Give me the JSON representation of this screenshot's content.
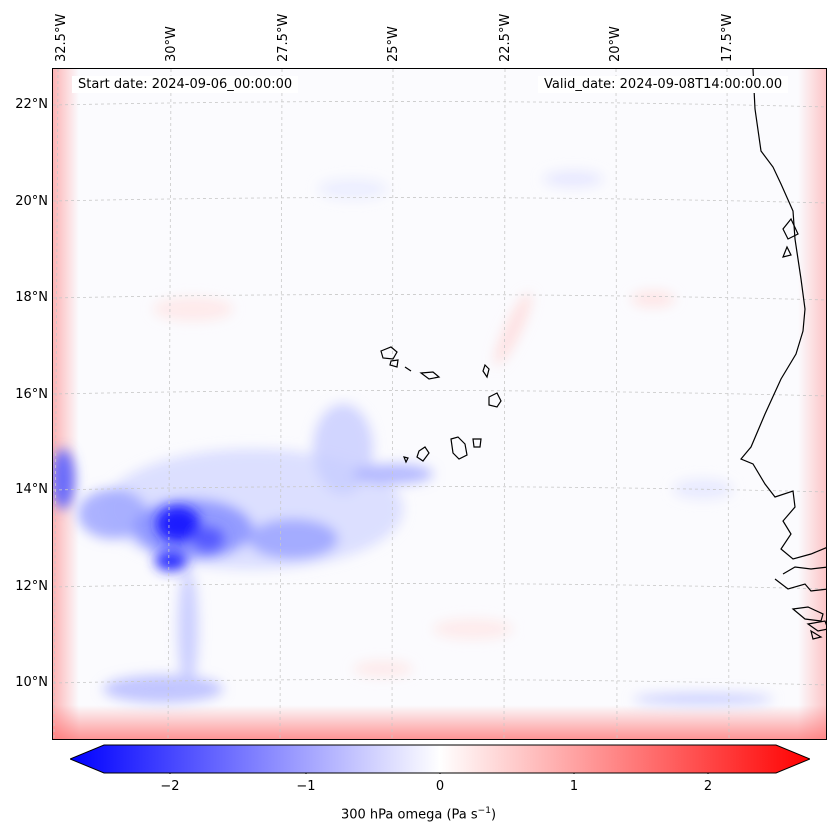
{
  "header": {
    "start_date": "Start date: 2024-09-06_00:00:00",
    "valid_date": "Valid_date: 2024-09-08T14:00:00.00"
  },
  "axes": {
    "lon_labels": [
      "32.5°W",
      "30°W",
      "27.5°W",
      "25°W",
      "22.5°W",
      "20°W",
      "17.5°W"
    ],
    "lat_labels": [
      "22°N",
      "20°N",
      "18°N",
      "16°N",
      "14°N",
      "12°N",
      "10°N"
    ]
  },
  "colorbar": {
    "label_main": "300 hPa omega (Pa s",
    "label_sup": "−1",
    "label_close": ")",
    "ticks": [
      "−2",
      "−1",
      "0",
      "1",
      "2"
    ],
    "range": [
      -2.6,
      2.6
    ],
    "cmap": "bwr",
    "colors": {
      "negative": "#0000ff",
      "neutral": "#ffffff",
      "positive": "#ff0000"
    }
  },
  "map": {
    "coastline_color": "#000000",
    "gridlines": "dashed light gray"
  }
}
